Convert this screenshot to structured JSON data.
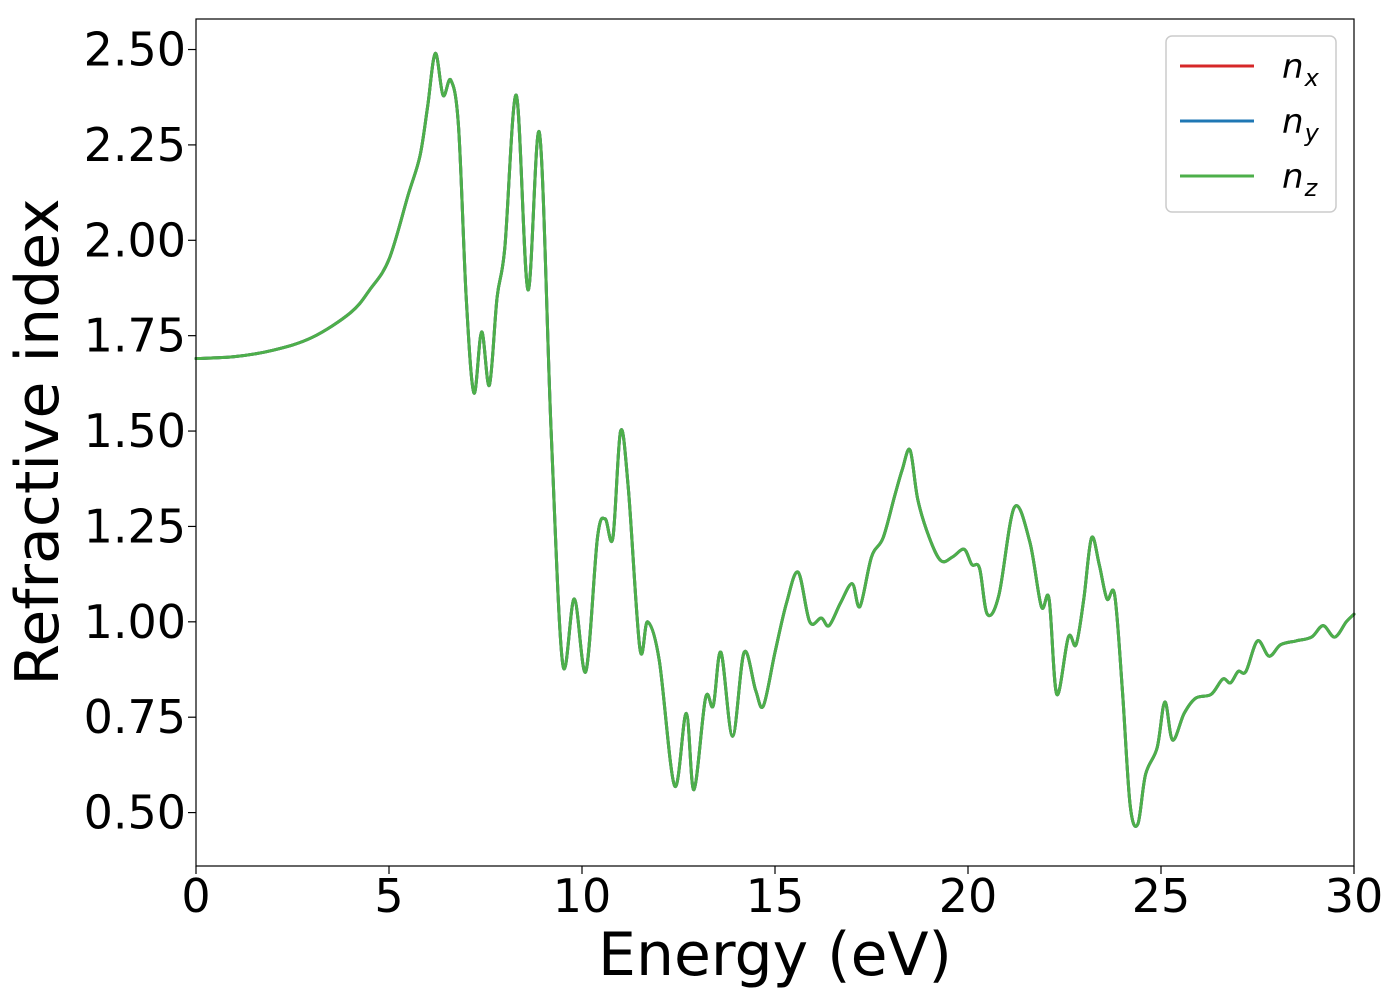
{
  "chart_data": {
    "type": "line",
    "title": "",
    "xlabel": "Energy (eV)",
    "ylabel": "Refractive index",
    "xlim": [
      0,
      30
    ],
    "ylim": [
      0.36,
      2.58
    ],
    "xticks": [
      0,
      5,
      10,
      15,
      20,
      25,
      30
    ],
    "xtick_labels": [
      "0",
      "5",
      "10",
      "15",
      "20",
      "25",
      "30"
    ],
    "yticks": [
      0.5,
      0.75,
      1.0,
      1.25,
      1.5,
      1.75,
      2.0,
      2.25,
      2.5
    ],
    "ytick_labels": [
      "0.50",
      "0.75",
      "1.00",
      "1.25",
      "1.50",
      "1.75",
      "2.00",
      "2.25",
      "2.50"
    ],
    "grid": false,
    "legend_position": "top-right",
    "x": [
      0,
      1,
      2,
      3,
      4,
      4.5,
      5,
      5.5,
      5.8,
      6.0,
      6.2,
      6.4,
      6.6,
      6.8,
      7.0,
      7.2,
      7.4,
      7.6,
      7.8,
      8.0,
      8.3,
      8.6,
      8.9,
      9.2,
      9.5,
      9.8,
      10.1,
      10.4,
      10.6,
      10.8,
      11.0,
      11.2,
      11.5,
      11.7,
      12.0,
      12.4,
      12.7,
      12.9,
      13.2,
      13.4,
      13.6,
      13.9,
      14.2,
      14.5,
      14.7,
      15.0,
      15.3,
      15.6,
      15.9,
      16.2,
      16.4,
      16.7,
      17.0,
      17.2,
      17.5,
      17.8,
      18.1,
      18.3,
      18.5,
      18.7,
      19.0,
      19.3,
      19.6,
      19.9,
      20.1,
      20.3,
      20.5,
      20.8,
      21.2,
      21.6,
      21.9,
      22.1,
      22.3,
      22.6,
      22.8,
      23.0,
      23.2,
      23.4,
      23.6,
      23.8,
      24.0,
      24.2,
      24.4,
      24.6,
      24.9,
      25.1,
      25.3,
      25.6,
      25.9,
      26.3,
      26.6,
      26.8,
      27.0,
      27.2,
      27.5,
      27.8,
      28.1,
      28.5,
      28.9,
      29.2,
      29.5,
      29.8,
      30.0
    ],
    "series": [
      {
        "name": "n_x",
        "label_base": "n",
        "label_sub": "x",
        "color": "#d62728",
        "values": [
          1.69,
          1.695,
          1.712,
          1.745,
          1.81,
          1.87,
          1.95,
          2.12,
          2.22,
          2.35,
          2.49,
          2.38,
          2.42,
          2.3,
          1.85,
          1.6,
          1.76,
          1.62,
          1.85,
          1.98,
          2.38,
          1.87,
          2.28,
          1.5,
          0.89,
          1.06,
          0.87,
          1.22,
          1.27,
          1.22,
          1.5,
          1.35,
          0.93,
          1.0,
          0.9,
          0.57,
          0.76,
          0.56,
          0.8,
          0.78,
          0.92,
          0.7,
          0.92,
          0.82,
          0.78,
          0.92,
          1.05,
          1.13,
          1.0,
          1.01,
          0.99,
          1.05,
          1.1,
          1.04,
          1.17,
          1.22,
          1.33,
          1.4,
          1.45,
          1.32,
          1.22,
          1.16,
          1.17,
          1.19,
          1.15,
          1.14,
          1.02,
          1.07,
          1.3,
          1.21,
          1.04,
          1.06,
          0.81,
          0.96,
          0.94,
          1.06,
          1.22,
          1.15,
          1.06,
          1.07,
          0.82,
          0.52,
          0.47,
          0.6,
          0.67,
          0.79,
          0.69,
          0.76,
          0.8,
          0.81,
          0.85,
          0.84,
          0.87,
          0.87,
          0.95,
          0.91,
          0.94,
          0.95,
          0.96,
          0.99,
          0.96,
          1.0,
          1.02
        ]
      },
      {
        "name": "n_y",
        "label_base": "n",
        "label_sub": "y",
        "color": "#1f77b4",
        "values": [
          1.69,
          1.695,
          1.712,
          1.745,
          1.81,
          1.87,
          1.95,
          2.12,
          2.22,
          2.35,
          2.49,
          2.38,
          2.42,
          2.3,
          1.85,
          1.6,
          1.76,
          1.62,
          1.85,
          1.98,
          2.38,
          1.87,
          2.28,
          1.5,
          0.89,
          1.06,
          0.87,
          1.22,
          1.27,
          1.22,
          1.5,
          1.35,
          0.93,
          1.0,
          0.9,
          0.57,
          0.76,
          0.56,
          0.8,
          0.78,
          0.92,
          0.7,
          0.92,
          0.82,
          0.78,
          0.92,
          1.05,
          1.13,
          1.0,
          1.01,
          0.99,
          1.05,
          1.1,
          1.04,
          1.17,
          1.22,
          1.33,
          1.4,
          1.45,
          1.32,
          1.22,
          1.16,
          1.17,
          1.19,
          1.15,
          1.14,
          1.02,
          1.07,
          1.3,
          1.21,
          1.04,
          1.06,
          0.81,
          0.96,
          0.94,
          1.06,
          1.22,
          1.15,
          1.06,
          1.07,
          0.82,
          0.52,
          0.47,
          0.6,
          0.67,
          0.79,
          0.69,
          0.76,
          0.8,
          0.81,
          0.85,
          0.84,
          0.87,
          0.87,
          0.95,
          0.91,
          0.94,
          0.95,
          0.96,
          0.99,
          0.96,
          1.0,
          1.02
        ]
      },
      {
        "name": "n_z",
        "label_base": "n",
        "label_sub": "z",
        "color": "#4daf4a",
        "values": [
          1.69,
          1.695,
          1.712,
          1.745,
          1.81,
          1.87,
          1.95,
          2.12,
          2.22,
          2.35,
          2.49,
          2.38,
          2.42,
          2.3,
          1.85,
          1.6,
          1.76,
          1.62,
          1.85,
          1.98,
          2.38,
          1.87,
          2.28,
          1.5,
          0.89,
          1.06,
          0.87,
          1.22,
          1.27,
          1.22,
          1.5,
          1.35,
          0.93,
          1.0,
          0.9,
          0.57,
          0.76,
          0.56,
          0.8,
          0.78,
          0.92,
          0.7,
          0.92,
          0.82,
          0.78,
          0.92,
          1.05,
          1.13,
          1.0,
          1.01,
          0.99,
          1.05,
          1.1,
          1.04,
          1.17,
          1.22,
          1.33,
          1.4,
          1.45,
          1.32,
          1.22,
          1.16,
          1.17,
          1.19,
          1.15,
          1.14,
          1.02,
          1.07,
          1.3,
          1.21,
          1.04,
          1.06,
          0.81,
          0.96,
          0.94,
          1.06,
          1.22,
          1.15,
          1.06,
          1.07,
          0.82,
          0.52,
          0.47,
          0.6,
          0.67,
          0.79,
          0.69,
          0.76,
          0.8,
          0.81,
          0.85,
          0.84,
          0.87,
          0.87,
          0.95,
          0.91,
          0.94,
          0.95,
          0.96,
          0.99,
          0.96,
          1.0,
          1.02
        ]
      }
    ]
  }
}
